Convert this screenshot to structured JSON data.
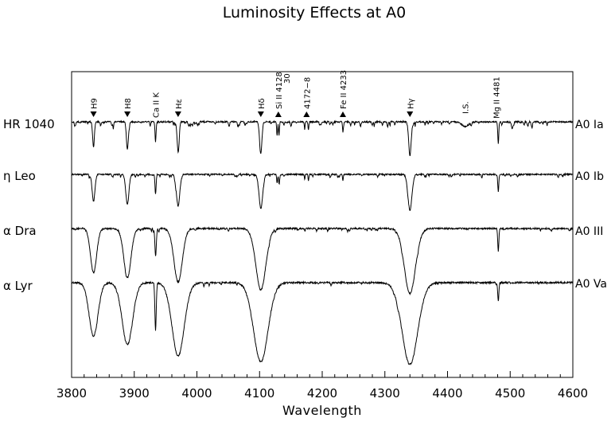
{
  "chart_data": {
    "type": "line",
    "title": "Luminosity Effects at A0",
    "xlabel": "Wavelength",
    "ylabel": "",
    "xlim": [
      3800,
      4600
    ],
    "xticks": [
      "3800",
      "3900",
      "4000",
      "4100",
      "4200",
      "4300",
      "4400",
      "4500",
      "4600"
    ],
    "grid": false,
    "series": [
      {
        "name": "HR 1040",
        "classification": "A0 Ia",
        "offset": 0,
        "absorption_lines": [
          {
            "x": 3835,
            "depth": 0.52,
            "width": 1.6
          },
          {
            "x": 3889,
            "depth": 0.58,
            "width": 1.7
          },
          {
            "x": 3934,
            "depth": 0.42,
            "width": 0.9
          },
          {
            "x": 3970,
            "depth": 0.62,
            "width": 1.8
          },
          {
            "x": 4102,
            "depth": 0.67,
            "width": 2.0
          },
          {
            "x": 4128,
            "depth": 0.3,
            "width": 0.8
          },
          {
            "x": 4131,
            "depth": 0.28,
            "width": 0.8
          },
          {
            "x": 4172,
            "depth": 0.16,
            "width": 0.7
          },
          {
            "x": 4178,
            "depth": 0.18,
            "width": 0.7
          },
          {
            "x": 4233,
            "depth": 0.18,
            "width": 0.7
          },
          {
            "x": 4340,
            "depth": 0.72,
            "width": 2.2
          },
          {
            "x": 4428,
            "depth": 0.1,
            "width": 6.0
          },
          {
            "x": 4481,
            "depth": 0.45,
            "width": 0.9
          }
        ]
      },
      {
        "name": "η Leo",
        "classification": "A0 Ib",
        "offset": 1,
        "absorption_lines": [
          {
            "x": 3835,
            "depth": 0.62,
            "width": 2.5
          },
          {
            "x": 3889,
            "depth": 0.68,
            "width": 2.8
          },
          {
            "x": 3934,
            "depth": 0.45,
            "width": 1.0
          },
          {
            "x": 3970,
            "depth": 0.72,
            "width": 3.0
          },
          {
            "x": 4102,
            "depth": 0.78,
            "width": 3.3
          },
          {
            "x": 4128,
            "depth": 0.2,
            "width": 0.8
          },
          {
            "x": 4131,
            "depth": 0.18,
            "width": 0.8
          },
          {
            "x": 4172,
            "depth": 0.12,
            "width": 0.7
          },
          {
            "x": 4178,
            "depth": 0.14,
            "width": 0.7
          },
          {
            "x": 4233,
            "depth": 0.16,
            "width": 0.7
          },
          {
            "x": 4340,
            "depth": 0.82,
            "width": 3.6
          },
          {
            "x": 4481,
            "depth": 0.4,
            "width": 0.9
          }
        ]
      },
      {
        "name": "α Dra",
        "classification": "A0 III",
        "offset": 2,
        "absorption_lines": [
          {
            "x": 3835,
            "depth": 0.58,
            "width": 5.5
          },
          {
            "x": 3889,
            "depth": 0.64,
            "width": 6.5
          },
          {
            "x": 3934,
            "depth": 0.35,
            "width": 1.2
          },
          {
            "x": 3970,
            "depth": 0.7,
            "width": 7.5
          },
          {
            "x": 4102,
            "depth": 0.8,
            "width": 9.0
          },
          {
            "x": 4340,
            "depth": 0.85,
            "width": 10.0
          },
          {
            "x": 4481,
            "depth": 0.3,
            "width": 1.0
          }
        ]
      },
      {
        "name": "α Lyr",
        "classification": "A0 Va",
        "offset": 3,
        "absorption_lines": [
          {
            "x": 3835,
            "depth": 0.62,
            "width": 8.0
          },
          {
            "x": 3889,
            "depth": 0.72,
            "width": 9.5
          },
          {
            "x": 3934,
            "depth": 0.55,
            "width": 1.2
          },
          {
            "x": 3970,
            "depth": 0.85,
            "width": 11.0
          },
          {
            "x": 4102,
            "depth": 0.92,
            "width": 13.0
          },
          {
            "x": 4340,
            "depth": 0.95,
            "width": 14.0
          },
          {
            "x": 4481,
            "depth": 0.22,
            "width": 1.0
          }
        ]
      }
    ],
    "line_identifications": [
      {
        "label": "H9",
        "x": 3835,
        "marker": "down"
      },
      {
        "label": "H8",
        "x": 3889,
        "marker": "down"
      },
      {
        "label": "Ca II K",
        "x": 3934,
        "marker": "none"
      },
      {
        "label": "Hε",
        "x": 3970,
        "marker": "down"
      },
      {
        "label": "Hδ",
        "x": 4102,
        "marker": "down"
      },
      {
        "label": "Si II 4128",
        "x": 4130,
        "marker": "up"
      },
      {
        "label": "30",
        "x": 4130,
        "marker": "none"
      },
      {
        "label": "4172−8",
        "x": 4175,
        "marker": "up"
      },
      {
        "label": "Fe II 4233",
        "x": 4233,
        "marker": "up"
      },
      {
        "label": "Hγ",
        "x": 4340,
        "marker": "down"
      },
      {
        "label": "I.S.",
        "x": 4428,
        "marker": "none"
      },
      {
        "label": "Mg II 4481",
        "x": 4481,
        "marker": "none"
      }
    ]
  }
}
